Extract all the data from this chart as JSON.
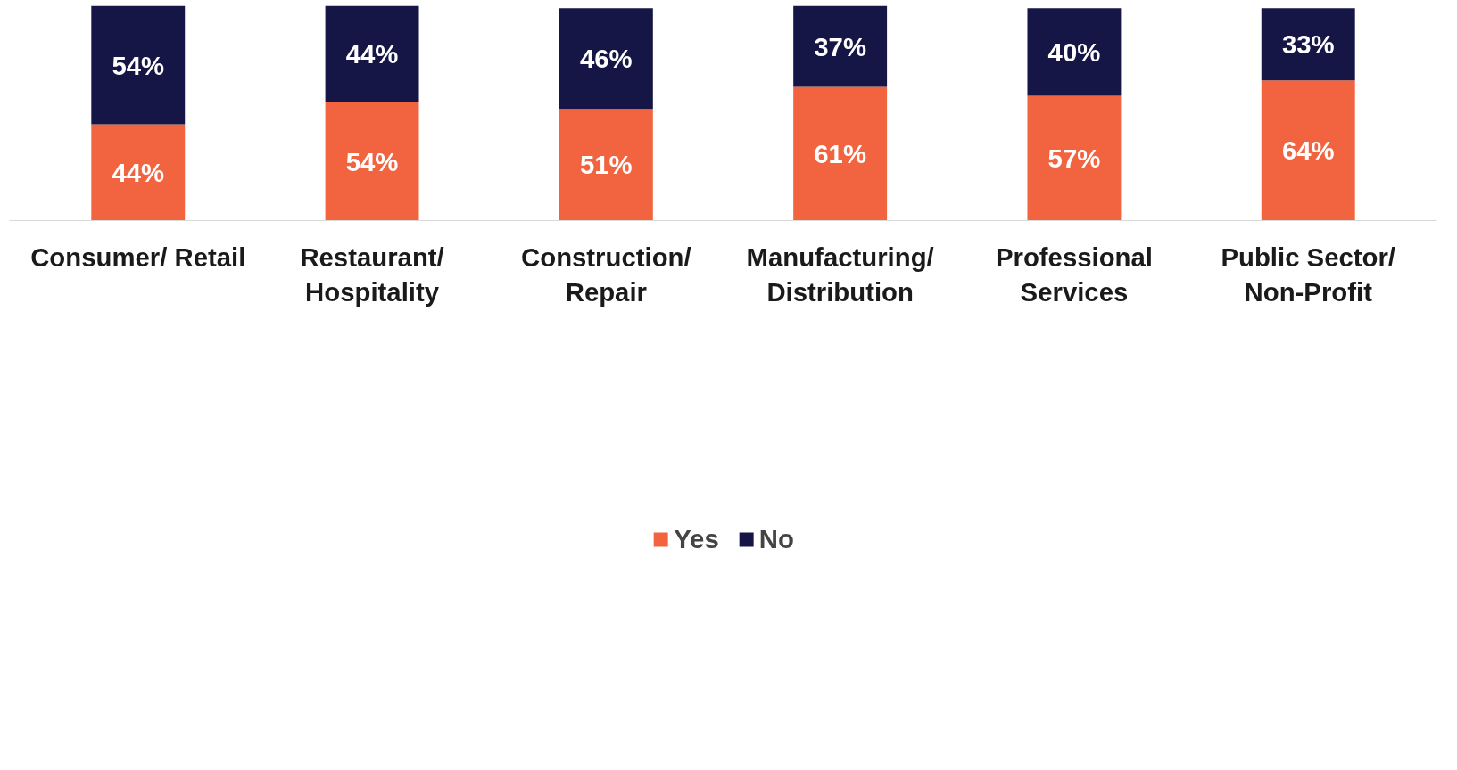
{
  "chart_data": {
    "type": "bar",
    "stacked": true,
    "legend": "bottom",
    "grid": false,
    "categories": [
      "Consumer/ Retail",
      "Restaurant/ Hospitality",
      "Construction/ Repair",
      "Manufacturing/ Distribution",
      "Professional Services",
      "Public Sector/ Non-Profit"
    ],
    "series": [
      {
        "name": "Yes",
        "color": "#f26440",
        "values": [
          44,
          54,
          51,
          61,
          57,
          64
        ],
        "value_labels": [
          "44%",
          "54%",
          "51%",
          "61%",
          "57%",
          "64%"
        ]
      },
      {
        "name": "No",
        "color": "#161646",
        "values": [
          54,
          44,
          46,
          37,
          40,
          33
        ],
        "value_labels": [
          "54%",
          "44%",
          "46%",
          "37%",
          "40%",
          "33%"
        ]
      }
    ]
  }
}
